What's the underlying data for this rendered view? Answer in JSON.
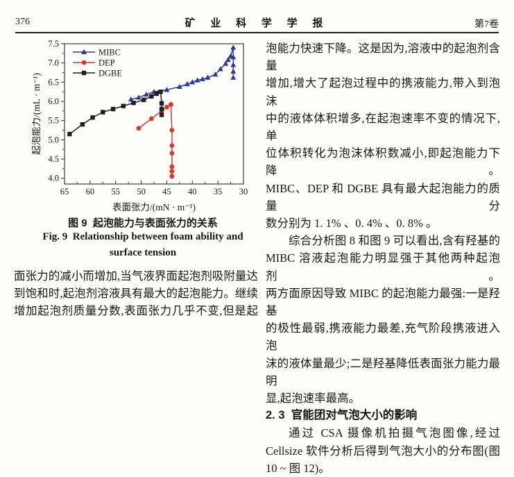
{
  "header": {
    "page_number": "376",
    "journal_title": "矿 业 科 学 学 报",
    "volume": "第7卷"
  },
  "figure": {
    "caption_cn": "图 9  起泡能力与表面张力的关系",
    "caption_en_line1": "Fig. 9  Relationship between foam ability and",
    "caption_en_line2": "surface tension"
  },
  "chart_data": {
    "type": "line",
    "title": "",
    "xlabel": "表面张力/(mN · m⁻¹)",
    "ylabel": "起泡能力/(mL · m⁻¹)",
    "x_axis_reversed": true,
    "x_range": [
      65,
      30
    ],
    "y_range": [
      3.85,
      7.5
    ],
    "x_ticks": [
      65,
      60,
      55,
      50,
      45,
      40,
      35,
      30
    ],
    "y_ticks": [
      4.0,
      4.5,
      5.0,
      5.5,
      6.0,
      6.5,
      7.0,
      7.5
    ],
    "grid": false,
    "legend_position": "top-left",
    "axis_color": "#3a3a3a",
    "series": [
      {
        "name": "MIBC",
        "color": "#2c3a96",
        "marker": "triangle",
        "points": [
          [
            52,
            6.05
          ],
          [
            50.5,
            6.1
          ],
          [
            49,
            6.18
          ],
          [
            47.5,
            6.25
          ],
          [
            45,
            6.3
          ],
          [
            42.5,
            6.38
          ],
          [
            41,
            6.45
          ],
          [
            40,
            6.5
          ],
          [
            39,
            6.55
          ],
          [
            38,
            6.58
          ],
          [
            37,
            6.62
          ],
          [
            35.5,
            6.7
          ],
          [
            34.5,
            6.84
          ],
          [
            33.5,
            6.98
          ],
          [
            33,
            7.08
          ],
          [
            32.5,
            7.18
          ],
          [
            32,
            7.4
          ],
          [
            32,
            7.15
          ],
          [
            32,
            6.95
          ],
          [
            32,
            6.78
          ],
          [
            32,
            6.62
          ]
        ]
      },
      {
        "name": "DEP",
        "color": "#d93a28",
        "marker": "circle",
        "points": [
          [
            50.5,
            5.3
          ],
          [
            48,
            5.55
          ],
          [
            46,
            5.75
          ],
          [
            45,
            5.85
          ],
          [
            44.2,
            5.92
          ],
          [
            44,
            5.25
          ],
          [
            44,
            4.85
          ],
          [
            44,
            4.65
          ],
          [
            44,
            4.3
          ],
          [
            44,
            4.18
          ],
          [
            44,
            4.05
          ]
        ]
      },
      {
        "name": "DGBE",
        "color": "#1f1f1f",
        "marker": "square",
        "points": [
          [
            64,
            5.15
          ],
          [
            61.5,
            5.4
          ],
          [
            59.5,
            5.58
          ],
          [
            57.5,
            5.72
          ],
          [
            55.5,
            5.8
          ],
          [
            53.5,
            5.88
          ],
          [
            51.5,
            5.96
          ],
          [
            49.5,
            6.04
          ],
          [
            48,
            6.13
          ],
          [
            47,
            6.2
          ],
          [
            46.2,
            6.25
          ],
          [
            46,
            5.95
          ],
          [
            46,
            5.8
          ],
          [
            46,
            5.65
          ]
        ]
      }
    ]
  },
  "left_column": {
    "lines": [
      {
        "t": "面张力的减小而增加,当气液界面起泡剂吸附量达",
        "s": "normal"
      },
      {
        "t": "到饱和时,起泡剂溶液具有最大的起泡能力。继续",
        "s": "normal"
      },
      {
        "t": "增加起泡剂质量分数,表面张力几乎不变,但是起",
        "s": "normal"
      }
    ]
  },
  "right_column": {
    "lines": [
      {
        "t": "泡能力快速下降。这是因为,溶液中的起泡剂含量",
        "s": "normal"
      },
      {
        "t": "增加,增大了起泡过程中的携液能力,带入到泡沫",
        "s": "normal"
      },
      {
        "t": "中的液体体积增多,在起泡速率不变的情况下,单",
        "s": "normal"
      },
      {
        "t": "位体积转化为泡沫体积数减小,即起泡能力下降。",
        "s": "normal"
      },
      {
        "t": "MIBC、DEP 和 DGBE 具有最大起泡能力的质量分",
        "s": "normal"
      },
      {
        "t": "数分别为 1. 1% 、0. 4% 、0. 8% 。",
        "s": "end"
      },
      {
        "t": "综合分析图 8 和图 9 可以看出,含有羟基的",
        "s": "indent"
      },
      {
        "t": "MIBC 溶液起泡能力明显强于其他两种起泡剂。",
        "s": "normal"
      },
      {
        "t": "两方面原因导致 MIBC 的起泡能力最强:一是羟基",
        "s": "normal"
      },
      {
        "t": "的极性最弱,携液能力最差,充气阶段携液进入泡",
        "s": "normal"
      },
      {
        "t": "沫的液体量最少;二是羟基降低表面张力能力最明",
        "s": "normal"
      },
      {
        "t": "显,起泡速率最高。",
        "s": "end"
      },
      {
        "t": "2. 3  官能团对气泡大小的影响",
        "s": "heading"
      },
      {
        "t": "通过 CSA 摄像机拍摄气泡图像,经过",
        "s": "indent"
      },
      {
        "t": "Cellsize 软件分析后得到气泡大小的分布图(图",
        "s": "normal"
      },
      {
        "t": "10 ~ 图 12)。",
        "s": "end"
      }
    ]
  }
}
